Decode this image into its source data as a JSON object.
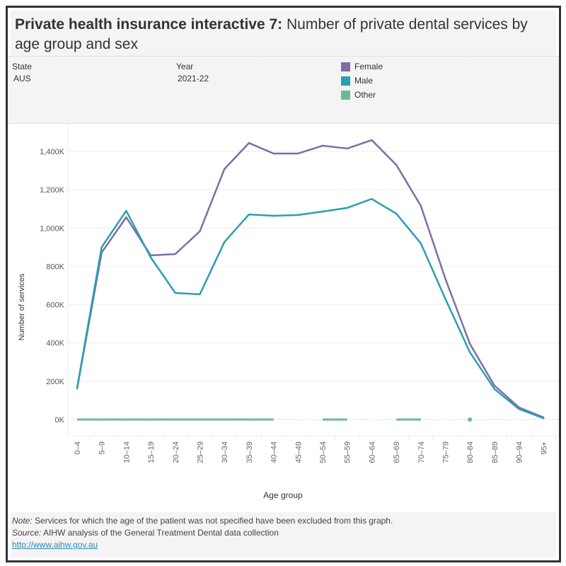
{
  "header": {
    "title_bold": "Private health insurance interactive 7:",
    "title_rest": " Number of private dental services by age group and sex"
  },
  "filters": {
    "state_label": "State",
    "state_value": "AUS",
    "year_label": "Year",
    "year_value": "2021-22"
  },
  "legend": [
    {
      "label": "Female",
      "color": "#7b6fa6"
    },
    {
      "label": "Male",
      "color": "#2a9fb0"
    },
    {
      "label": "Other",
      "color": "#6db994"
    }
  ],
  "footer": {
    "note_label": "Note:",
    "note_text": " Services for which the age of the patient was not specified have been excluded from this graph.",
    "source_label": "Source:",
    "source_text": " AIHW analysis of the General Treatment Dental data collection",
    "link": "http://www.aihw.gov.au"
  },
  "chart_data": {
    "type": "line",
    "xlabel": "Age group",
    "ylabel": "Number of services",
    "ylim": [
      0,
      1500000
    ],
    "yticks": [
      0,
      200000,
      400000,
      600000,
      800000,
      1000000,
      1200000,
      1400000
    ],
    "ytick_labels": [
      "0K",
      "200K",
      "400K",
      "600K",
      "800K",
      "1,000K",
      "1,200K",
      "1,400K"
    ],
    "grid": true,
    "legend": "top",
    "categories": [
      "0–4",
      "5–9",
      "10–14",
      "15–19",
      "20–24",
      "25–29",
      "30–34",
      "35–39",
      "40–44",
      "45–49",
      "50–54",
      "55–59",
      "60–64",
      "65–69",
      "70–74",
      "75–79",
      "80–84",
      "85–89",
      "90–94",
      "95+"
    ],
    "series": [
      {
        "name": "Female",
        "color": "#7b6fa6",
        "values": [
          162000,
          872000,
          1056000,
          857000,
          864000,
          983000,
          1308000,
          1444000,
          1389000,
          1389000,
          1430000,
          1415000,
          1459000,
          1330000,
          1116000,
          735000,
          395000,
          177000,
          63000,
          11000
        ]
      },
      {
        "name": "Male",
        "color": "#2a9fb0",
        "values": [
          165000,
          900000,
          1090000,
          846000,
          661000,
          654000,
          927000,
          1071000,
          1064000,
          1068000,
          1086000,
          1105000,
          1152000,
          1075000,
          920000,
          630000,
          351000,
          159000,
          55000,
          7000
        ]
      },
      {
        "name": "Other",
        "color": "#6db994",
        "values": [
          0,
          0,
          0,
          0,
          0,
          0,
          0,
          0,
          0,
          null,
          0,
          0,
          null,
          0,
          0,
          null,
          0,
          null,
          null,
          null
        ]
      }
    ]
  }
}
